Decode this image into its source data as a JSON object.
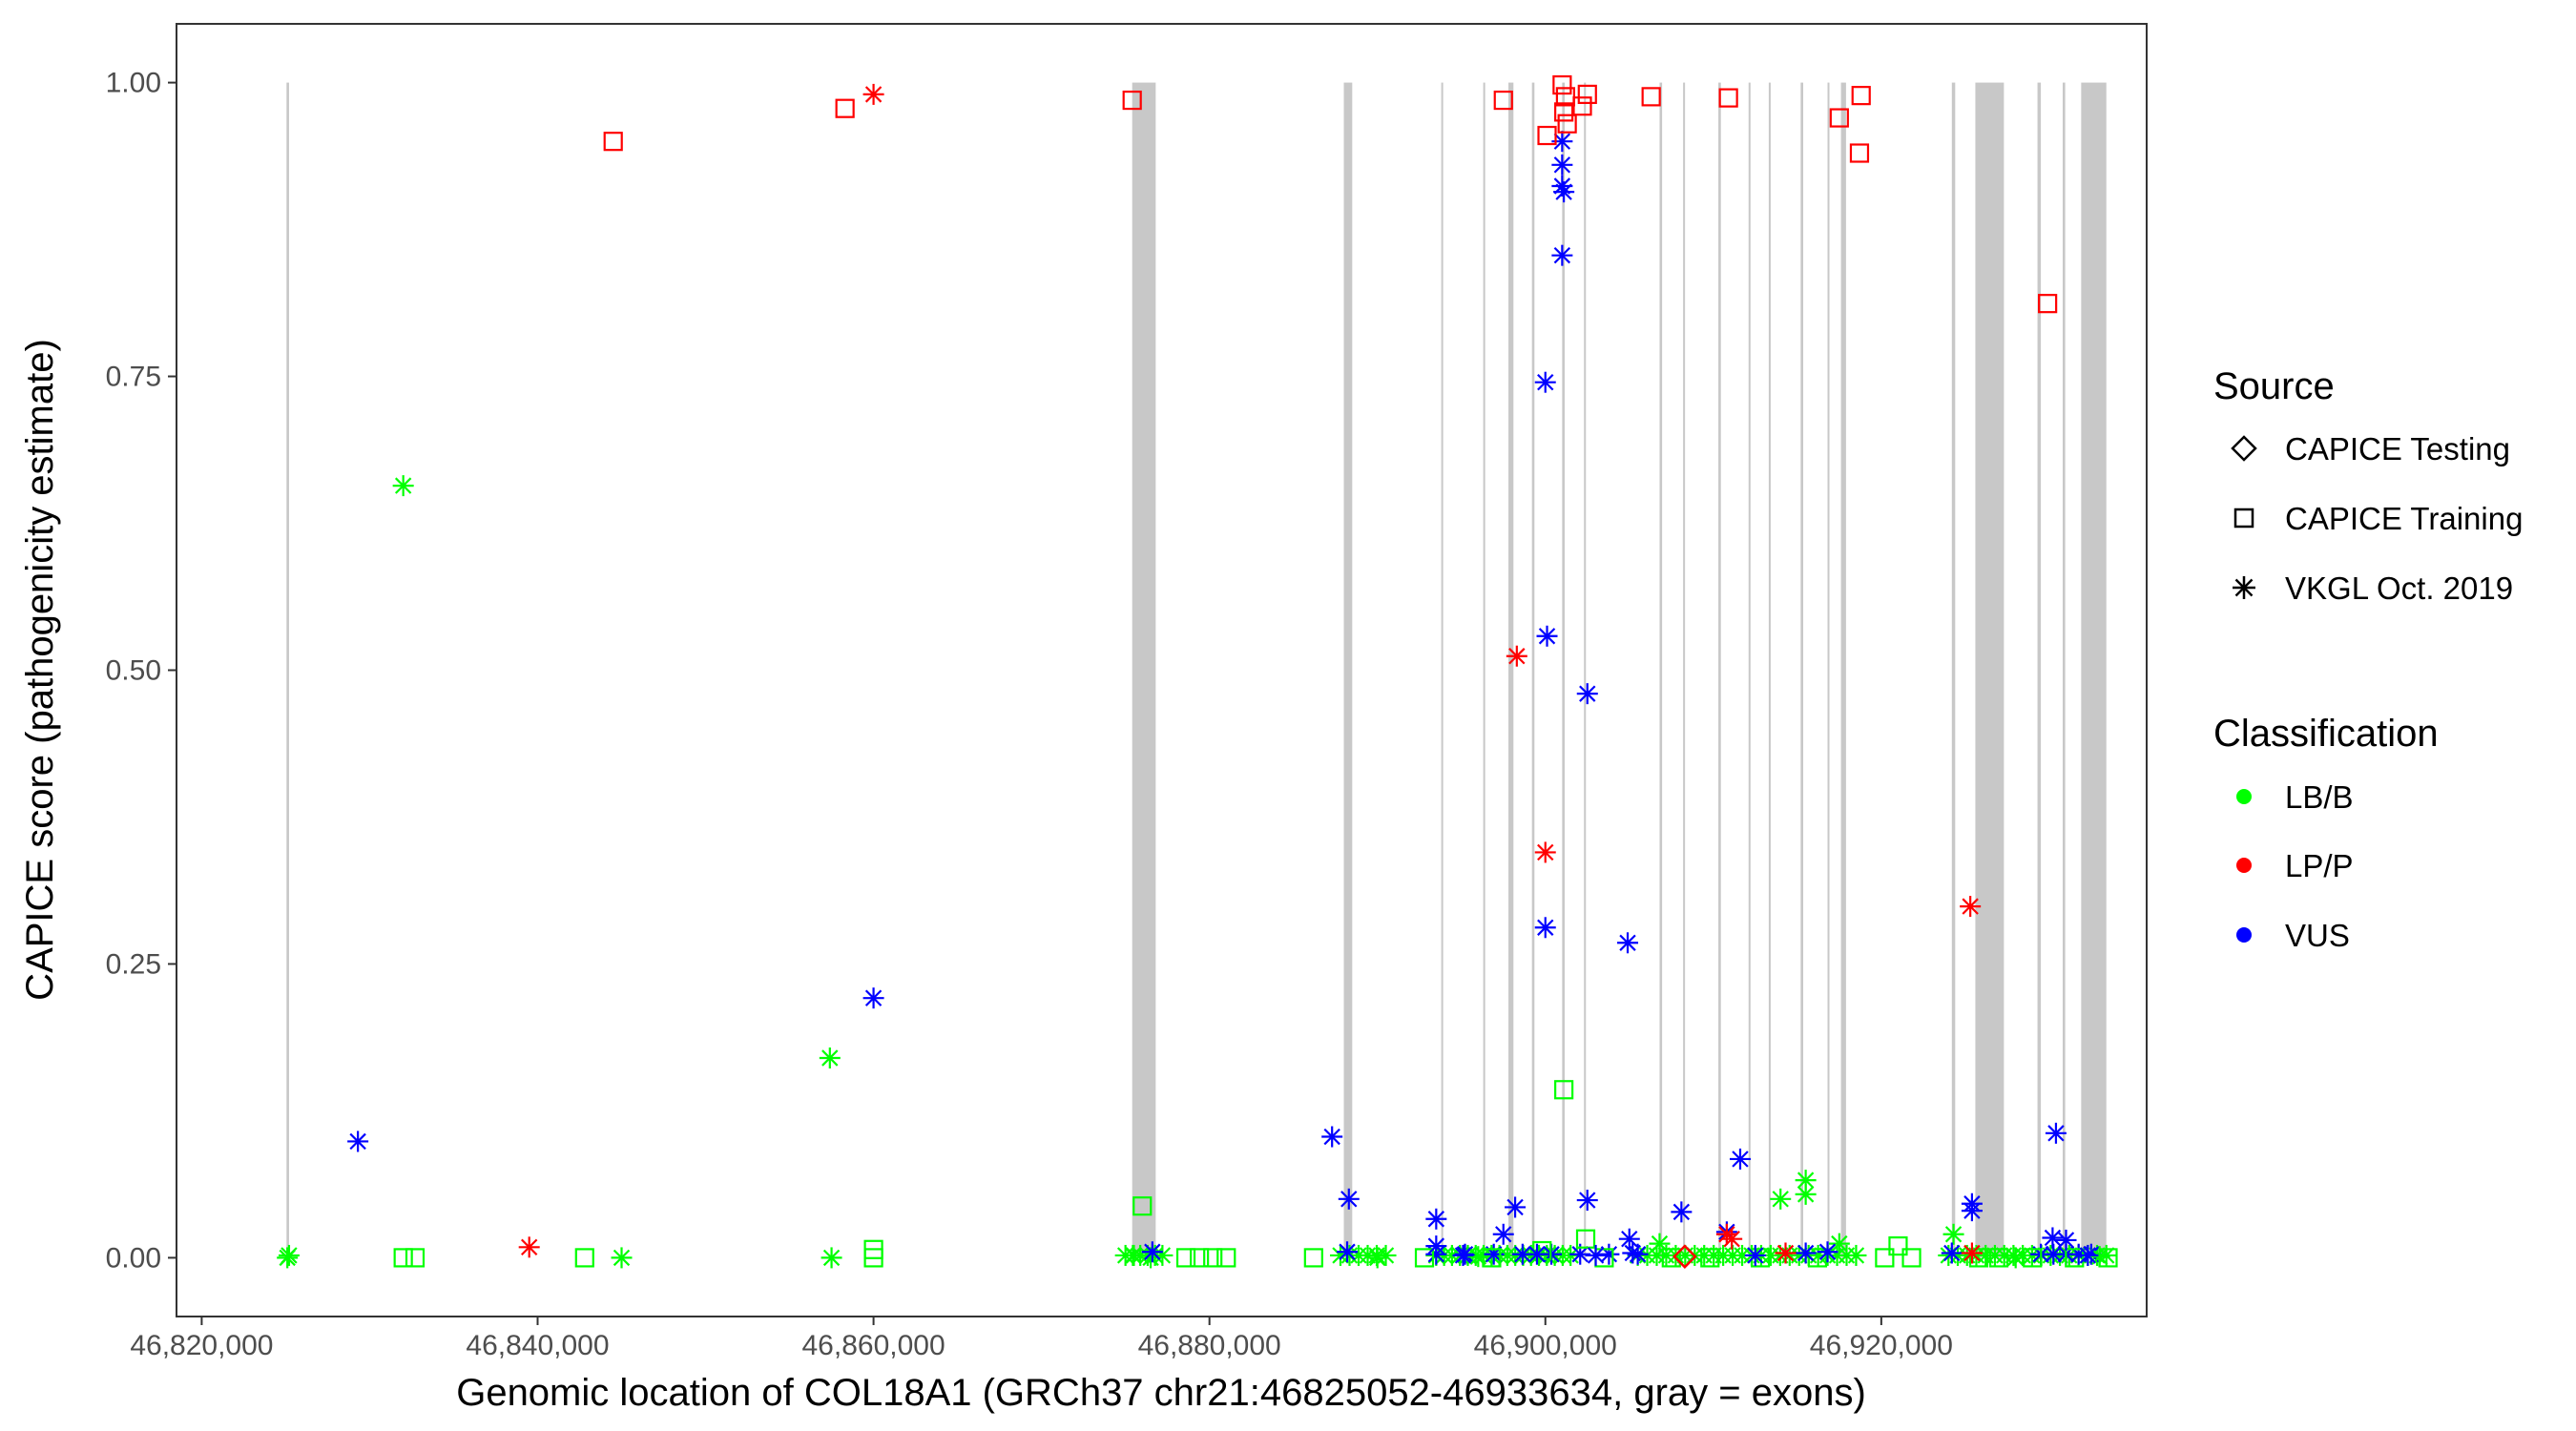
{
  "chart_data": {
    "type": "scatter",
    "title": "",
    "xlabel": "Genomic location of COL18A1 (GRCh37 chr21:46825052-46933634, gray = exons)",
    "ylabel": "CAPICE score (pathogenicity estimate)",
    "xlim": [
      46818500,
      46935800
    ],
    "ylim": [
      -0.05,
      1.05
    ],
    "x_ticks": [
      46820000,
      46840000,
      46860000,
      46880000,
      46900000,
      46920000
    ],
    "x_tick_labels": [
      "46,820,000",
      "46,840,000",
      "46,860,000",
      "46,880,000",
      "46,900,000",
      "46,920,000"
    ],
    "y_ticks": [
      0,
      0.25,
      0.5,
      0.75,
      1
    ],
    "y_tick_labels": [
      "0.00",
      "0.25",
      "0.50",
      "0.75",
      "1.00"
    ],
    "exons": [
      [
        46825050,
        46825200
      ],
      [
        46875400,
        46876800
      ],
      [
        46888000,
        46888500
      ],
      [
        46893800,
        46893900
      ],
      [
        46896300,
        46896400
      ],
      [
        46897800,
        46898100
      ],
      [
        46899200,
        46899350
      ],
      [
        46901000,
        46901150
      ],
      [
        46902300,
        46902400
      ],
      [
        46906800,
        46906950
      ],
      [
        46908200,
        46908300
      ],
      [
        46910300,
        46910450
      ],
      [
        46912100,
        46912200
      ],
      [
        46913300,
        46913400
      ],
      [
        46915200,
        46915350
      ],
      [
        46916800,
        46916900
      ],
      [
        46917600,
        46917900
      ],
      [
        46924200,
        46924400
      ],
      [
        46925600,
        46927300
      ],
      [
        46929300,
        46929500
      ],
      [
        46930800,
        46930950
      ],
      [
        46931900,
        46933400
      ]
    ],
    "legend": {
      "source_title": "Source",
      "source_items": [
        {
          "label": "CAPICE Testing",
          "shape": "diamond"
        },
        {
          "label": "CAPICE Training",
          "shape": "square"
        },
        {
          "label": "VKGL Oct. 2019",
          "shape": "asterisk"
        }
      ],
      "class_title": "Classification",
      "class_items": [
        {
          "label": "LB/B",
          "color": "#00ff00"
        },
        {
          "label": "LP/P",
          "color": "#ff0000"
        },
        {
          "label": "VUS",
          "color": "#0000ff"
        }
      ]
    },
    "colors": {
      "LB/B": "#00ff00",
      "LP/P": "#ff0000",
      "VUS": "#0000ff"
    },
    "points": [
      {
        "x": 46844500,
        "y": 0.95,
        "source": "CAPICE Training",
        "class": "LP/P"
      },
      {
        "x": 46858300,
        "y": 0.978,
        "source": "CAPICE Training",
        "class": "LP/P"
      },
      {
        "x": 46860000,
        "y": 0.99,
        "source": "VKGL Oct. 2019",
        "class": "LP/P"
      },
      {
        "x": 46875400,
        "y": 0.985,
        "source": "CAPICE Training",
        "class": "LP/P"
      },
      {
        "x": 46897500,
        "y": 0.985,
        "source": "CAPICE Training",
        "class": "LP/P"
      },
      {
        "x": 46900100,
        "y": 0.955,
        "source": "CAPICE Training",
        "class": "LP/P"
      },
      {
        "x": 46901000,
        "y": 0.998,
        "source": "CAPICE Training",
        "class": "LP/P"
      },
      {
        "x": 46901100,
        "y": 0.975,
        "source": "CAPICE Training",
        "class": "LP/P"
      },
      {
        "x": 46901300,
        "y": 0.965,
        "source": "CAPICE Training",
        "class": "LP/P"
      },
      {
        "x": 46901200,
        "y": 0.988,
        "source": "CAPICE Training",
        "class": "LP/P"
      },
      {
        "x": 46902200,
        "y": 0.98,
        "source": "CAPICE Training",
        "class": "LP/P"
      },
      {
        "x": 46902500,
        "y": 0.99,
        "source": "CAPICE Training",
        "class": "LP/P"
      },
      {
        "x": 46906300,
        "y": 0.988,
        "source": "CAPICE Training",
        "class": "LP/P"
      },
      {
        "x": 46910900,
        "y": 0.987,
        "source": "CAPICE Training",
        "class": "LP/P"
      },
      {
        "x": 46917500,
        "y": 0.97,
        "source": "CAPICE Training",
        "class": "LP/P"
      },
      {
        "x": 46918800,
        "y": 0.989,
        "source": "CAPICE Training",
        "class": "LP/P"
      },
      {
        "x": 46918700,
        "y": 0.94,
        "source": "CAPICE Training",
        "class": "LP/P"
      },
      {
        "x": 46929900,
        "y": 0.812,
        "source": "CAPICE Training",
        "class": "LP/P"
      },
      {
        "x": 46898300,
        "y": 0.512,
        "source": "VKGL Oct. 2019",
        "class": "LP/P"
      },
      {
        "x": 46900000,
        "y": 0.345,
        "source": "VKGL Oct. 2019",
        "class": "LP/P"
      },
      {
        "x": 46925300,
        "y": 0.299,
        "source": "VKGL Oct. 2019",
        "class": "LP/P"
      },
      {
        "x": 46839500,
        "y": 0.009,
        "source": "VKGL Oct. 2019",
        "class": "LP/P"
      },
      {
        "x": 46910800,
        "y": 0.02,
        "source": "VKGL Oct. 2019",
        "class": "LP/P"
      },
      {
        "x": 46911100,
        "y": 0.016,
        "source": "VKGL Oct. 2019",
        "class": "LP/P"
      },
      {
        "x": 46914300,
        "y": 0.004,
        "source": "VKGL Oct. 2019",
        "class": "LP/P"
      },
      {
        "x": 46925400,
        "y": 0.004,
        "source": "VKGL Oct. 2019",
        "class": "LP/P"
      },
      {
        "x": 46901000,
        "y": 0.95,
        "source": "VKGL Oct. 2019",
        "class": "VUS"
      },
      {
        "x": 46901000,
        "y": 0.93,
        "source": "VKGL Oct. 2019",
        "class": "VUS"
      },
      {
        "x": 46901000,
        "y": 0.912,
        "source": "VKGL Oct. 2019",
        "class": "VUS"
      },
      {
        "x": 46901100,
        "y": 0.907,
        "source": "VKGL Oct. 2019",
        "class": "VUS"
      },
      {
        "x": 46901000,
        "y": 0.853,
        "source": "VKGL Oct. 2019",
        "class": "VUS"
      },
      {
        "x": 46900000,
        "y": 0.745,
        "source": "VKGL Oct. 2019",
        "class": "VUS"
      },
      {
        "x": 46900100,
        "y": 0.529,
        "source": "VKGL Oct. 2019",
        "class": "VUS"
      },
      {
        "x": 46902500,
        "y": 0.48,
        "source": "VKGL Oct. 2019",
        "class": "VUS"
      },
      {
        "x": 46900000,
        "y": 0.281,
        "source": "VKGL Oct. 2019",
        "class": "VUS"
      },
      {
        "x": 46904900,
        "y": 0.268,
        "source": "VKGL Oct. 2019",
        "class": "VUS"
      },
      {
        "x": 46860000,
        "y": 0.221,
        "source": "VKGL Oct. 2019",
        "class": "VUS"
      },
      {
        "x": 46829300,
        "y": 0.099,
        "source": "VKGL Oct. 2019",
        "class": "VUS"
      },
      {
        "x": 46887300,
        "y": 0.103,
        "source": "VKGL Oct. 2019",
        "class": "VUS"
      },
      {
        "x": 46930400,
        "y": 0.106,
        "source": "VKGL Oct. 2019",
        "class": "VUS"
      },
      {
        "x": 46911600,
        "y": 0.084,
        "source": "VKGL Oct. 2019",
        "class": "VUS"
      },
      {
        "x": 46888300,
        "y": 0.05,
        "source": "VKGL Oct. 2019",
        "class": "VUS"
      },
      {
        "x": 46902500,
        "y": 0.049,
        "source": "VKGL Oct. 2019",
        "class": "VUS"
      },
      {
        "x": 46925400,
        "y": 0.046,
        "source": "VKGL Oct. 2019",
        "class": "VUS"
      },
      {
        "x": 46925400,
        "y": 0.04,
        "source": "VKGL Oct. 2019",
        "class": "VUS"
      },
      {
        "x": 46898200,
        "y": 0.043,
        "source": "VKGL Oct. 2019",
        "class": "VUS"
      },
      {
        "x": 46908100,
        "y": 0.039,
        "source": "VKGL Oct. 2019",
        "class": "VUS"
      },
      {
        "x": 46893500,
        "y": 0.033,
        "source": "VKGL Oct. 2019",
        "class": "VUS"
      },
      {
        "x": 46910800,
        "y": 0.022,
        "source": "VKGL Oct. 2019",
        "class": "VUS"
      },
      {
        "x": 46897500,
        "y": 0.02,
        "source": "VKGL Oct. 2019",
        "class": "VUS"
      },
      {
        "x": 46930200,
        "y": 0.017,
        "source": "VKGL Oct. 2019",
        "class": "VUS"
      },
      {
        "x": 46931000,
        "y": 0.015,
        "source": "VKGL Oct. 2019",
        "class": "VUS"
      },
      {
        "x": 46905000,
        "y": 0.016,
        "source": "VKGL Oct. 2019",
        "class": "VUS"
      },
      {
        "x": 46893500,
        "y": 0.01,
        "source": "VKGL Oct. 2019",
        "class": "VUS"
      },
      {
        "x": 46876600,
        "y": 0.005,
        "source": "VKGL Oct. 2019",
        "class": "VUS"
      },
      {
        "x": 46888200,
        "y": 0.005,
        "source": "VKGL Oct. 2019",
        "class": "VUS"
      },
      {
        "x": 46895100,
        "y": 0.002,
        "source": "VKGL Oct. 2019",
        "class": "VUS"
      },
      {
        "x": 46899500,
        "y": 0.003,
        "source": "VKGL Oct. 2019",
        "class": "VUS"
      },
      {
        "x": 46903000,
        "y": 0.002,
        "source": "VKGL Oct. 2019",
        "class": "VUS"
      },
      {
        "x": 46905200,
        "y": 0.004,
        "source": "VKGL Oct. 2019",
        "class": "VUS"
      },
      {
        "x": 46912500,
        "y": 0.002,
        "source": "VKGL Oct. 2019",
        "class": "VUS"
      },
      {
        "x": 46915500,
        "y": 0.004,
        "source": "VKGL Oct. 2019",
        "class": "VUS"
      },
      {
        "x": 46916800,
        "y": 0.005,
        "source": "VKGL Oct. 2019",
        "class": "VUS"
      },
      {
        "x": 46924200,
        "y": 0.004,
        "source": "VKGL Oct. 2019",
        "class": "VUS"
      },
      {
        "x": 46932300,
        "y": 0.002,
        "source": "VKGL Oct. 2019",
        "class": "VUS"
      },
      {
        "x": 46832000,
        "y": 0.657,
        "source": "VKGL Oct. 2019",
        "class": "LB/B"
      },
      {
        "x": 46857400,
        "y": 0.17,
        "source": "VKGL Oct. 2019",
        "class": "LB/B"
      },
      {
        "x": 46825100,
        "y": 0.0,
        "source": "VKGL Oct. 2019",
        "class": "LB/B"
      },
      {
        "x": 46825200,
        "y": 0.002,
        "source": "VKGL Oct. 2019",
        "class": "LB/B"
      },
      {
        "x": 46845000,
        "y": 0.0,
        "source": "VKGL Oct. 2019",
        "class": "LB/B"
      },
      {
        "x": 46857500,
        "y": 0.0,
        "source": "VKGL Oct. 2019",
        "class": "LB/B"
      },
      {
        "x": 46875500,
        "y": 0.002,
        "source": "VKGL Oct. 2019",
        "class": "LB/B"
      },
      {
        "x": 46876500,
        "y": 0.0,
        "source": "VKGL Oct. 2019",
        "class": "LB/B"
      },
      {
        "x": 46890000,
        "y": 0.0,
        "source": "VKGL Oct. 2019",
        "class": "LB/B"
      },
      {
        "x": 46896000,
        "y": 0.001,
        "source": "VKGL Oct. 2019",
        "class": "LB/B"
      },
      {
        "x": 46906800,
        "y": 0.012,
        "source": "VKGL Oct. 2019",
        "class": "LB/B"
      },
      {
        "x": 46914000,
        "y": 0.05,
        "source": "VKGL Oct. 2019",
        "class": "LB/B"
      },
      {
        "x": 46915500,
        "y": 0.066,
        "source": "VKGL Oct. 2019",
        "class": "LB/B"
      },
      {
        "x": 46915500,
        "y": 0.054,
        "source": "VKGL Oct. 2019",
        "class": "LB/B"
      },
      {
        "x": 46917500,
        "y": 0.012,
        "source": "VKGL Oct. 2019",
        "class": "LB/B"
      },
      {
        "x": 46924300,
        "y": 0.02,
        "source": "VKGL Oct. 2019",
        "class": "LB/B"
      },
      {
        "x": 46928000,
        "y": 0.0,
        "source": "VKGL Oct. 2019",
        "class": "LB/B"
      },
      {
        "x": 46933000,
        "y": 0.001,
        "source": "VKGL Oct. 2019",
        "class": "LB/B"
      },
      {
        "x": 46901100,
        "y": 0.143,
        "source": "CAPICE Training",
        "class": "LB/B"
      },
      {
        "x": 46876000,
        "y": 0.044,
        "source": "CAPICE Training",
        "class": "LB/B"
      },
      {
        "x": 46902400,
        "y": 0.016,
        "source": "CAPICE Training",
        "class": "LB/B"
      },
      {
        "x": 46921000,
        "y": 0.01,
        "source": "CAPICE Training",
        "class": "LB/B"
      },
      {
        "x": 46860000,
        "y": 0.007,
        "source": "CAPICE Training",
        "class": "LB/B"
      },
      {
        "x": 46832000,
        "y": 0.0,
        "source": "CAPICE Training",
        "class": "LB/B"
      },
      {
        "x": 46832700,
        "y": 0.0,
        "source": "CAPICE Training",
        "class": "LB/B"
      },
      {
        "x": 46842800,
        "y": 0.0,
        "source": "CAPICE Training",
        "class": "LB/B"
      },
      {
        "x": 46860000,
        "y": 0.0,
        "source": "CAPICE Training",
        "class": "LB/B"
      },
      {
        "x": 46878600,
        "y": 0.0,
        "source": "CAPICE Training",
        "class": "LB/B"
      },
      {
        "x": 46879400,
        "y": 0.0,
        "source": "CAPICE Training",
        "class": "LB/B"
      },
      {
        "x": 46880200,
        "y": 0.0,
        "source": "CAPICE Training",
        "class": "LB/B"
      },
      {
        "x": 46881000,
        "y": 0.0,
        "source": "CAPICE Training",
        "class": "LB/B"
      },
      {
        "x": 46886200,
        "y": 0.0,
        "source": "CAPICE Training",
        "class": "LB/B"
      },
      {
        "x": 46892800,
        "y": 0.0,
        "source": "CAPICE Training",
        "class": "LB/B"
      },
      {
        "x": 46896800,
        "y": 0.0,
        "source": "CAPICE Training",
        "class": "LB/B"
      },
      {
        "x": 46899800,
        "y": 0.006,
        "source": "CAPICE Training",
        "class": "LB/B"
      },
      {
        "x": 46903500,
        "y": 0.0,
        "source": "CAPICE Training",
        "class": "LB/B"
      },
      {
        "x": 46907500,
        "y": 0.0,
        "source": "CAPICE Training",
        "class": "LB/B"
      },
      {
        "x": 46909800,
        "y": 0.0,
        "source": "CAPICE Training",
        "class": "LB/B"
      },
      {
        "x": 46912800,
        "y": 0.0,
        "source": "CAPICE Training",
        "class": "LB/B"
      },
      {
        "x": 46916200,
        "y": 0.0,
        "source": "CAPICE Training",
        "class": "LB/B"
      },
      {
        "x": 46920200,
        "y": 0.0,
        "source": "CAPICE Training",
        "class": "LB/B"
      },
      {
        "x": 46921800,
        "y": 0.0,
        "source": "CAPICE Training",
        "class": "LB/B"
      },
      {
        "x": 46925800,
        "y": 0.0,
        "source": "CAPICE Training",
        "class": "LB/B"
      },
      {
        "x": 46927000,
        "y": 0.0,
        "source": "CAPICE Training",
        "class": "LB/B"
      },
      {
        "x": 46929000,
        "y": 0.0,
        "source": "CAPICE Training",
        "class": "LB/B"
      },
      {
        "x": 46931500,
        "y": 0.0,
        "source": "CAPICE Training",
        "class": "LB/B"
      },
      {
        "x": 46933500,
        "y": 0.0,
        "source": "CAPICE Training",
        "class": "LB/B"
      },
      {
        "x": 46908300,
        "y": 0.001,
        "source": "CAPICE Testing",
        "class": "LP/P"
      }
    ],
    "dense_bands": [
      {
        "from": 46875000,
        "to": 46877200,
        "y": 0.002,
        "class": "LB/B",
        "source": "VKGL Oct. 2019",
        "count": 6
      },
      {
        "from": 46887800,
        "to": 46890500,
        "y": 0.002,
        "class": "LB/B",
        "source": "VKGL Oct. 2019",
        "count": 6
      },
      {
        "from": 46893500,
        "to": 46901500,
        "y": 0.002,
        "class": "LB/B",
        "source": "VKGL Oct. 2019",
        "count": 18
      },
      {
        "from": 46905500,
        "to": 46918500,
        "y": 0.002,
        "class": "LB/B",
        "source": "VKGL Oct. 2019",
        "count": 24
      },
      {
        "from": 46924000,
        "to": 46933400,
        "y": 0.002,
        "class": "LB/B",
        "source": "VKGL Oct. 2019",
        "count": 18
      },
      {
        "from": 46893500,
        "to": 46905500,
        "y": 0.003,
        "class": "VUS",
        "source": "VKGL Oct. 2019",
        "count": 8
      },
      {
        "from": 46929500,
        "to": 46932500,
        "y": 0.003,
        "class": "VUS",
        "source": "VKGL Oct. 2019",
        "count": 5
      }
    ]
  }
}
